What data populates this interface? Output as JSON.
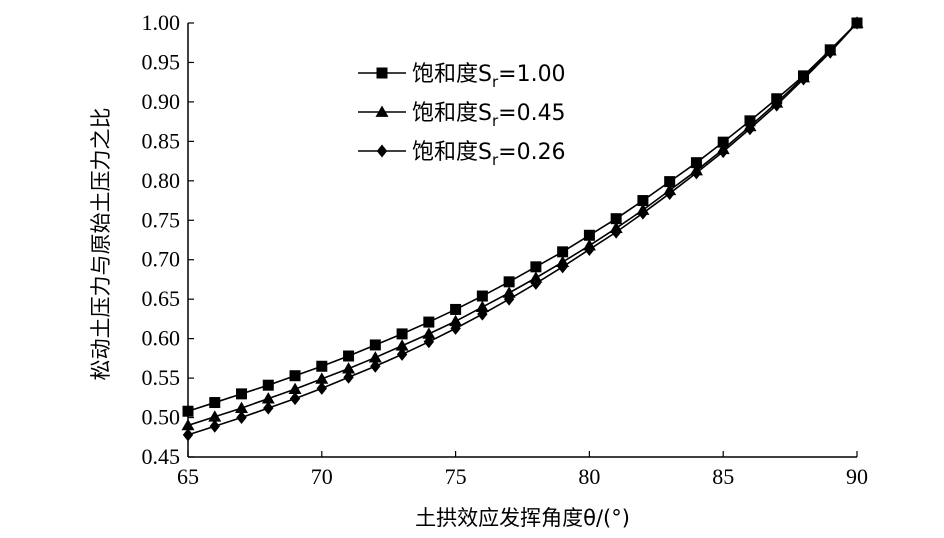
{
  "chart_data": {
    "type": "line",
    "xlabel": "土拱效应发挥角度θ/(°)",
    "ylabel": "松动土压力与原始土压力之比",
    "xlim": [
      65,
      90
    ],
    "ylim": [
      0.45,
      1.0
    ],
    "xticks": [
      "65",
      "70",
      "75",
      "80",
      "85",
      "90"
    ],
    "yticks": [
      "0.45",
      "0.50",
      "0.55",
      "0.60",
      "0.65",
      "0.70",
      "0.75",
      "0.80",
      "0.85",
      "0.90",
      "0.95",
      "1.00"
    ],
    "legend_position": "top-left",
    "x": [
      65,
      66,
      67,
      68,
      69,
      70,
      71,
      72,
      73,
      74,
      75,
      76,
      77,
      78,
      79,
      80,
      81,
      82,
      83,
      84,
      85,
      86,
      87,
      88,
      89,
      90
    ],
    "series": [
      {
        "name": "饱和度S",
        "name_subscript": "r",
        "name_value": "=1.00",
        "marker": "square",
        "values": [
          0.508,
          0.519,
          0.53,
          0.541,
          0.553,
          0.565,
          0.578,
          0.592,
          0.606,
          0.621,
          0.637,
          0.654,
          0.672,
          0.691,
          0.71,
          0.731,
          0.752,
          0.775,
          0.799,
          0.823,
          0.849,
          0.876,
          0.904,
          0.933,
          0.966,
          1.0
        ]
      },
      {
        "name": "饱和度S",
        "name_subscript": "r",
        "name_value": "=0.45",
        "marker": "triangle",
        "values": [
          0.49,
          0.501,
          0.512,
          0.524,
          0.536,
          0.549,
          0.562,
          0.576,
          0.591,
          0.606,
          0.622,
          0.64,
          0.658,
          0.677,
          0.697,
          0.718,
          0.74,
          0.763,
          0.788,
          0.813,
          0.84,
          0.869,
          0.899,
          0.931,
          0.965,
          1.0
        ]
      },
      {
        "name": "饱和度S",
        "name_subscript": "r",
        "name_value": "=0.26",
        "marker": "diamond",
        "values": [
          0.478,
          0.489,
          0.5,
          0.512,
          0.524,
          0.537,
          0.551,
          0.565,
          0.58,
          0.596,
          0.613,
          0.631,
          0.65,
          0.67,
          0.691,
          0.713,
          0.735,
          0.759,
          0.784,
          0.81,
          0.837,
          0.866,
          0.896,
          0.929,
          0.963,
          1.0
        ]
      }
    ]
  }
}
